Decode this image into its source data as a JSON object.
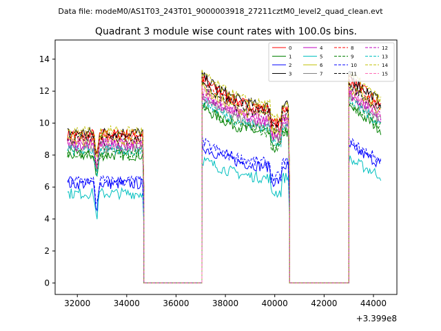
{
  "header": {
    "data_file": "Data file: modeM0/AS1T03_243T01_9000003918_27211cztM0_level2_quad_clean.evt"
  },
  "chart_data": {
    "type": "line",
    "title": "Quadrant 3 module wise count rates with 100.0s bins.",
    "xlabel": "",
    "ylabel": "",
    "x_offset_label": "+3.399e8",
    "xlim": [
      31100,
      44950
    ],
    "ylim": [
      -0.72,
      15.2
    ],
    "x_ticks": [
      32000,
      34000,
      36000,
      38000,
      40000,
      42000,
      44000
    ],
    "x_tick_labels": [
      "32000",
      "34000",
      "36000",
      "38000",
      "40000",
      "42000",
      "44000"
    ],
    "y_ticks": [
      0,
      2,
      4,
      6,
      8,
      10,
      12,
      14
    ],
    "y_tick_labels": [
      "0",
      "2",
      "4",
      "6",
      "8",
      "10",
      "12",
      "14"
    ],
    "grid": false,
    "legend_position": "top-right",
    "segments": [
      {
        "start": 31600,
        "end": 34650,
        "value": "on"
      },
      {
        "start": 34700,
        "end": 37000,
        "value": "off"
      },
      {
        "start": 37050,
        "end": 40550,
        "value": "on"
      },
      {
        "start": 40600,
        "end": 42950,
        "value": "off"
      },
      {
        "start": 43000,
        "end": 44300,
        "value": "on"
      }
    ],
    "series": [
      {
        "name": "0",
        "color": "#ff0000",
        "dash": "solid",
        "level": 9.3
      },
      {
        "name": "1",
        "color": "#008000",
        "dash": "solid",
        "level": 8.0
      },
      {
        "name": "2",
        "color": "#0000ff",
        "dash": "solid",
        "level": 6.2
      },
      {
        "name": "3",
        "color": "#000000",
        "dash": "solid",
        "level": 9.4
      },
      {
        "name": "4",
        "color": "#bf00bf",
        "dash": "solid",
        "level": 8.6
      },
      {
        "name": "5",
        "color": "#00bfbf",
        "dash": "solid",
        "level": 5.6
      },
      {
        "name": "6",
        "color": "#bfbf00",
        "dash": "solid",
        "level": 8.9
      },
      {
        "name": "7",
        "color": "#808080",
        "dash": "solid",
        "level": 8.4
      },
      {
        "name": "8",
        "color": "#ff0000",
        "dash": "dashed",
        "level": 9.2
      },
      {
        "name": "9",
        "color": "#008000",
        "dash": "dashed",
        "level": 8.1
      },
      {
        "name": "10",
        "color": "#0000ff",
        "dash": "dashed",
        "level": 6.4
      },
      {
        "name": "11",
        "color": "#000000",
        "dash": "dashed",
        "level": 9.0
      },
      {
        "name": "12",
        "color": "#bf00bf",
        "dash": "dashed",
        "level": 8.7
      },
      {
        "name": "13",
        "color": "#00bfbf",
        "dash": "dashed",
        "level": 8.3
      },
      {
        "name": "14",
        "color": "#bfbf00",
        "dash": "dashed",
        "level": 9.5
      },
      {
        "name": "15",
        "color": "#ff69b4",
        "dash": "dashed",
        "level": 8.8
      }
    ]
  }
}
